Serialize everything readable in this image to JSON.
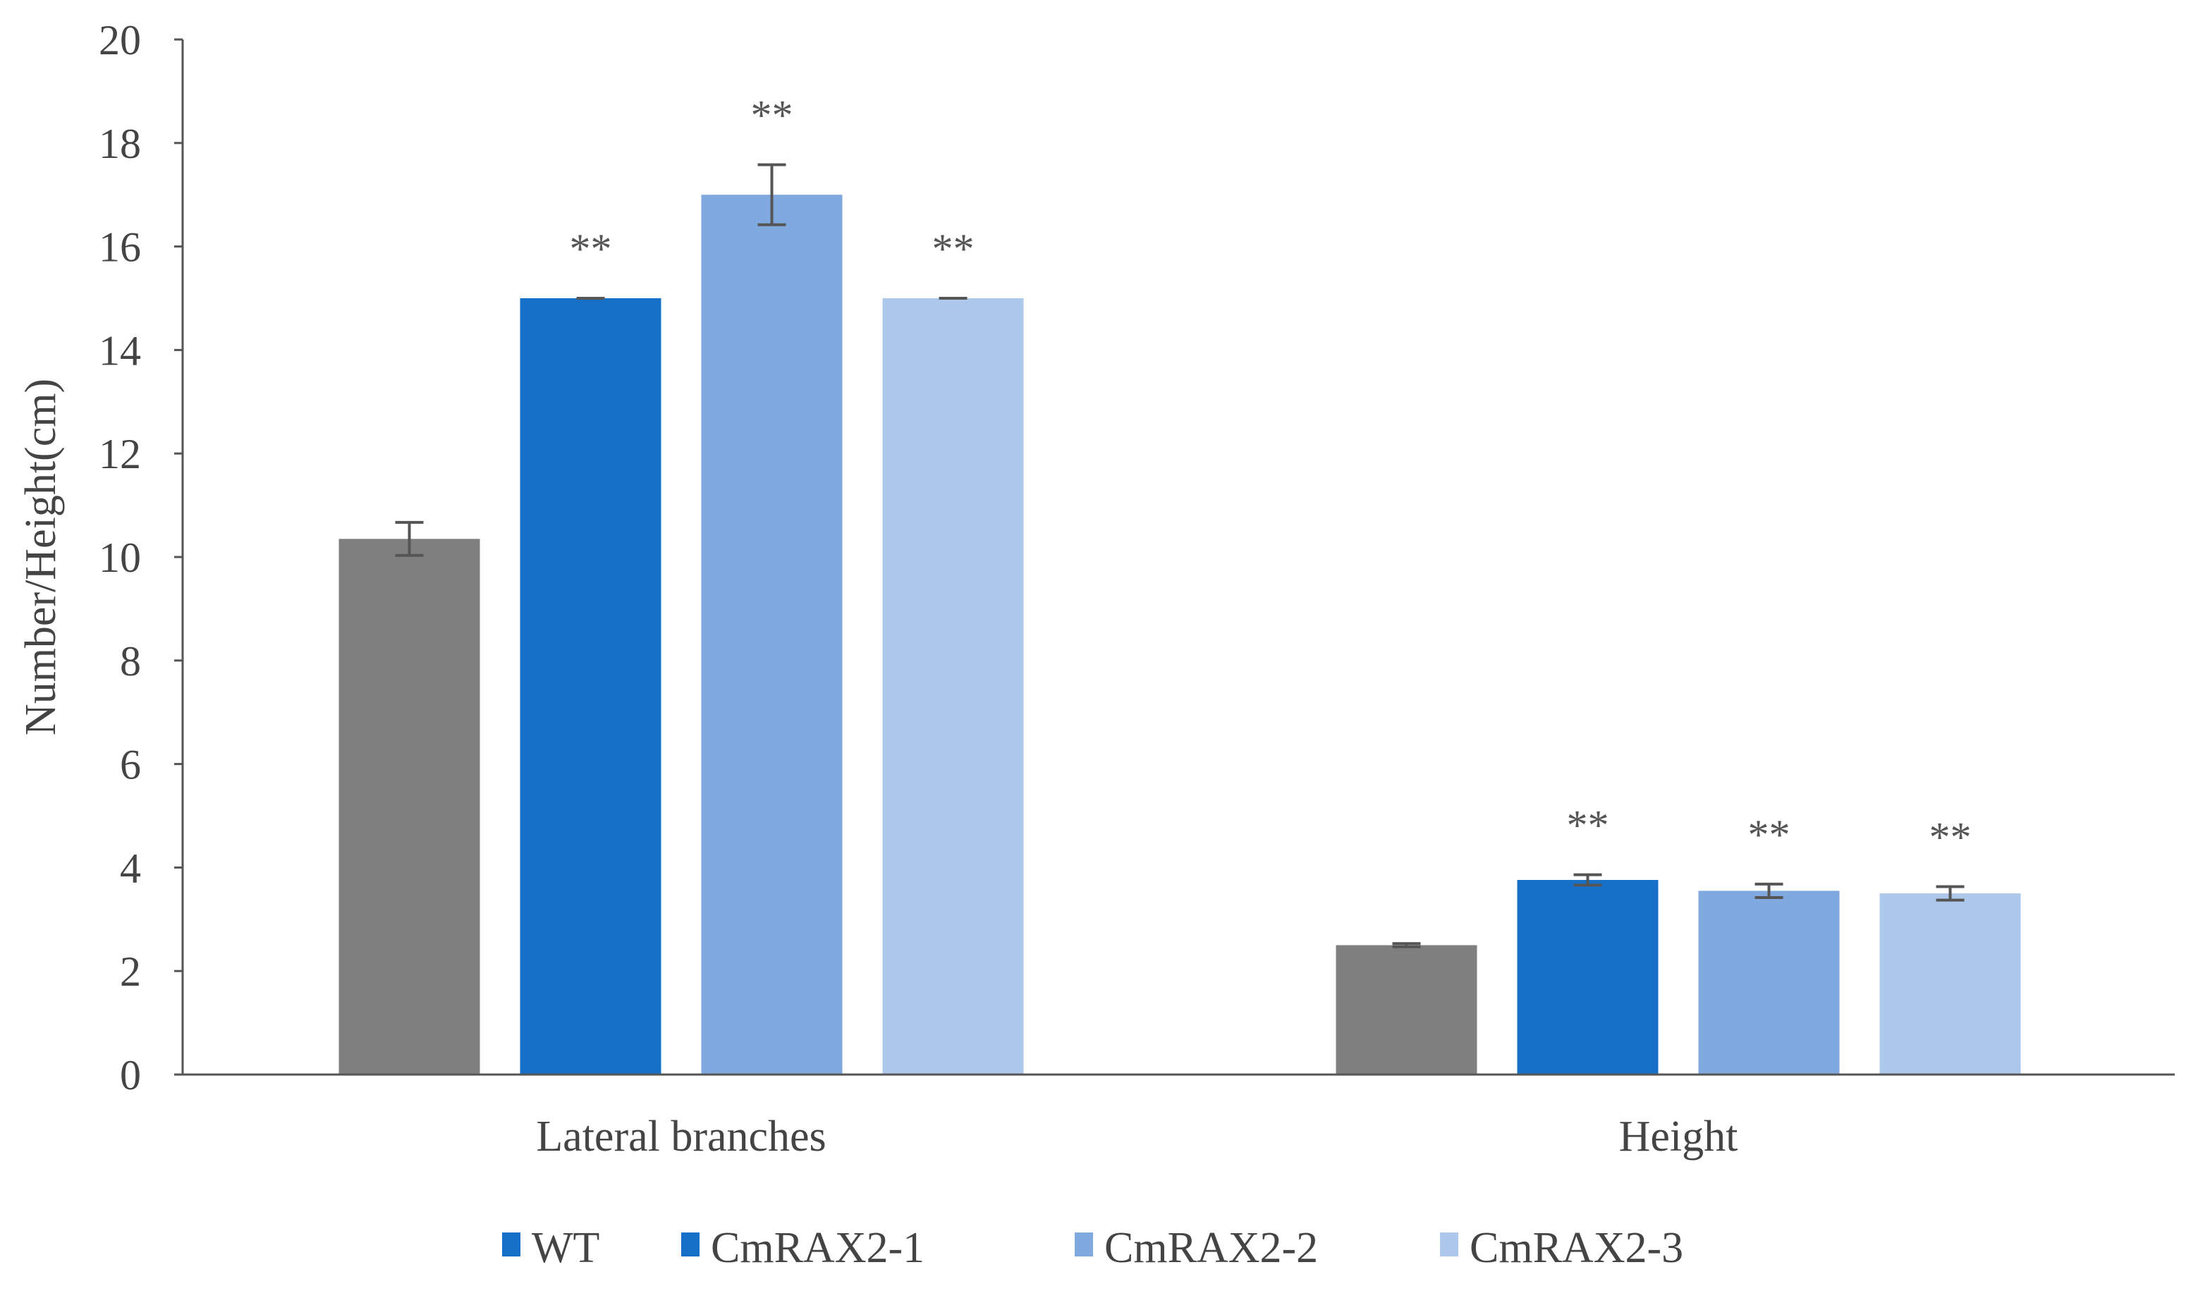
{
  "chart_data": {
    "type": "bar",
    "title": "",
    "xlabel": "",
    "ylabel": "Number/Height(cm)",
    "ylim": [
      0,
      20
    ],
    "yticks": [
      "0",
      "2",
      "4",
      "6",
      "8",
      "10",
      "12",
      "14",
      "16",
      "18",
      "20"
    ],
    "categories": [
      "Lateral branches",
      "Height"
    ],
    "grid": false,
    "legend_position": "bottom",
    "series": [
      {
        "name": "WT",
        "color": "#7f7f7f",
        "legend_color": "#1770c8",
        "values": [
          10.35,
          2.5
        ],
        "errors": [
          0.32,
          0.03
        ],
        "significance": [
          "",
          ""
        ]
      },
      {
        "name": "CmRAX2-1",
        "color": "#1770c8",
        "legend_color": "#1770c8",
        "values": [
          15.0,
          3.76
        ],
        "errors": [
          0.0,
          0.1
        ],
        "significance": [
          "**",
          "**"
        ]
      },
      {
        "name": "CmRAX2-2",
        "color": "#80aadf",
        "legend_color": "#80aadf",
        "values": [
          17.0,
          3.55
        ],
        "errors": [
          0.58,
          0.13
        ],
        "significance": [
          "**",
          "**"
        ]
      },
      {
        "name": "CmRAX2-3",
        "color": "#adc8ea",
        "legend_color": "#adc8ea",
        "values": [
          15.0,
          3.5
        ],
        "errors": [
          0.0,
          0.13
        ],
        "significance": [
          "**",
          "**"
        ]
      }
    ]
  }
}
